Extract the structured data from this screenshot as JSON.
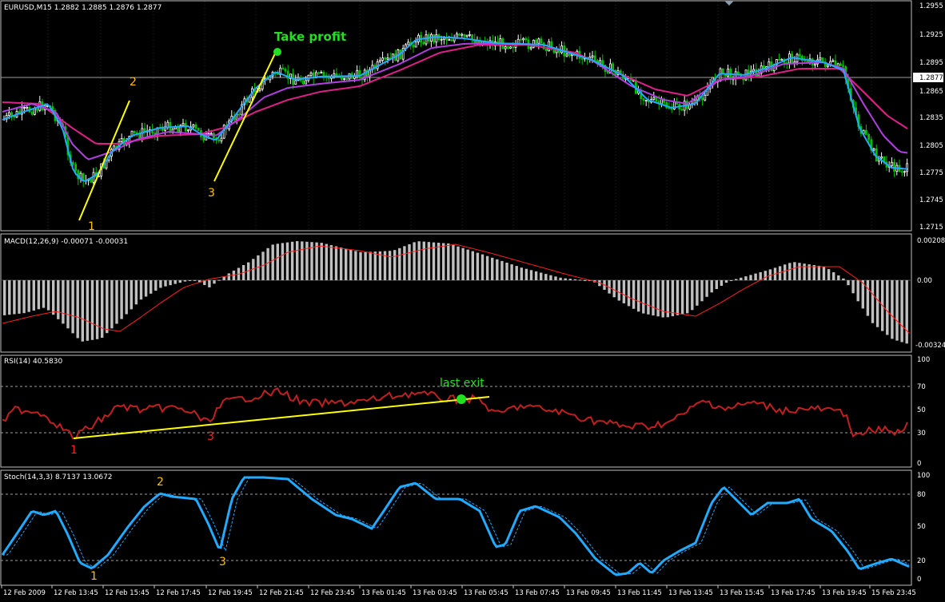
{
  "price_pane": {
    "title": "EURUSD,M15",
    "ohlc": [
      "1.2882",
      "1.2885",
      "1.2876",
      "1.2877"
    ],
    "axis_labels": [
      "1.2955",
      "1.2925",
      "1.2895",
      "1.2865",
      "1.2835",
      "1.2805",
      "1.2775",
      "1.2745",
      "1.2715"
    ],
    "current_price": "1.2877",
    "annotations": {
      "take_profit": "Take profit",
      "marker_1": "1",
      "marker_2": "2",
      "marker_3": "3"
    }
  },
  "macd_pane": {
    "title": "MACD(12,26,9)",
    "main": "-0.00071",
    "signal": "-0.00031",
    "axis_labels": [
      "0.00208",
      "0.00",
      "-0.00324"
    ]
  },
  "rsi_pane": {
    "title": "RSI(14)",
    "value": "40.5830",
    "axis_labels": [
      "100",
      "70",
      "50",
      "30",
      "0"
    ],
    "annotations": {
      "last_exit": "last exit",
      "marker_1": "1",
      "marker_3": "3"
    }
  },
  "stoch_pane": {
    "title": "Stoch(14,3,3)",
    "main": "8.7137",
    "signal": "13.0672",
    "axis_labels": [
      "100",
      "80",
      "50",
      "20",
      "0"
    ],
    "annotations": {
      "marker_1": "1",
      "marker_2": "2",
      "marker_3": "3"
    }
  },
  "time_axis": [
    "12 Feb 2009",
    "12 Feb 13:45",
    "12 Feb 15:45",
    "12 Feb 17:45",
    "12 Feb 19:45",
    "12 Feb 21:45",
    "12 Feb 23:45",
    "13 Feb 01:45",
    "13 Feb 03:45",
    "13 Feb 05:45",
    "13 Feb 07:45",
    "13 Feb 09:45",
    "13 Feb 11:45",
    "13 Feb 13:45",
    "13 Feb 15:45",
    "13 Feb 17:45",
    "13 Feb 19:45",
    "15 Feb 23:45"
  ],
  "colors": {
    "background": "#000000",
    "grid": "#c0c0c0",
    "bull_candle": "#ffffff",
    "bear_candle": "#00c000",
    "ma_fast": "#22aaff",
    "ma_mid": "#b040e0",
    "ma_slow": "#e0208a",
    "macd_hist": "#c0c0c0",
    "macd_signal": "#ff2020",
    "rsi_line": "#c02020",
    "trendline": "#ffff00",
    "marker_gold": "#ffc000",
    "marker_red": "#ff2020",
    "marker_green": "#20e020",
    "stoch_main": "#22aaff"
  }
}
